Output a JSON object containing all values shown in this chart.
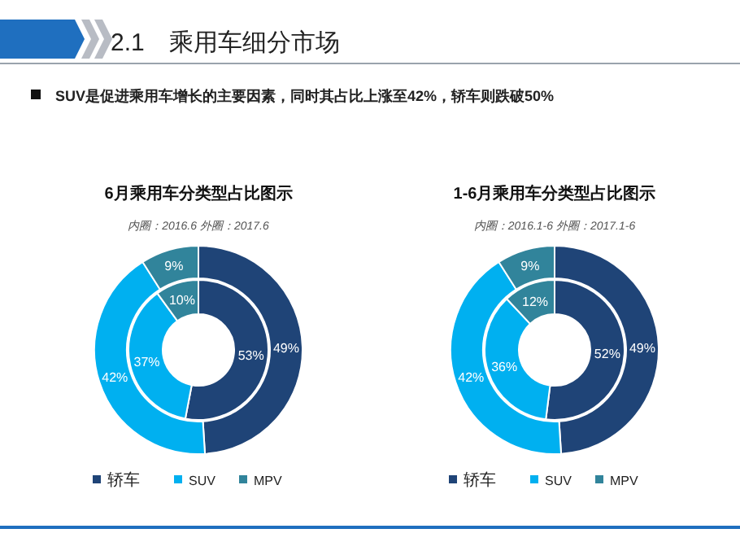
{
  "chart_data": [
    {
      "type": "other",
      "title": "2.1　乘用车细分市场",
      "annotations": [
        "SUV是促进乘用车增长的主要因素，同时其占比上涨至42%，轿车则跌破50%"
      ]
    },
    {
      "type": "donut",
      "title": "6月乘用车分类型占比图示",
      "subtitle": "内圈：2016.6 外圈：2017.6",
      "categories": [
        "轿车",
        "SUV",
        "MPV"
      ],
      "colors": [
        "#1f4477",
        "#00b0f0",
        "#31849b"
      ],
      "legend": "bottom",
      "series": [
        {
          "values": [
            53,
            37,
            10
          ],
          "value_labels": [
            "53%",
            "37%",
            "10%"
          ]
        },
        {
          "values": [
            49,
            42,
            9
          ],
          "value_labels": [
            "49%",
            "42%",
            "9%"
          ]
        }
      ]
    },
    {
      "type": "donut",
      "title": "1-6月乘用车分类型占比图示",
      "subtitle": "内圈：2016.1-6 外圈：2017.1-6",
      "categories": [
        "轿车",
        "SUV",
        "MPV"
      ],
      "colors": [
        "#1f4477",
        "#00b0f0",
        "#31849b"
      ],
      "legend": "bottom",
      "series": [
        {
          "values": [
            52,
            36,
            12
          ],
          "value_labels": [
            "52%",
            "36%",
            "12%"
          ]
        },
        {
          "values": [
            49,
            42,
            9
          ],
          "value_labels": [
            "49%",
            "42%",
            "9%"
          ]
        }
      ]
    }
  ]
}
